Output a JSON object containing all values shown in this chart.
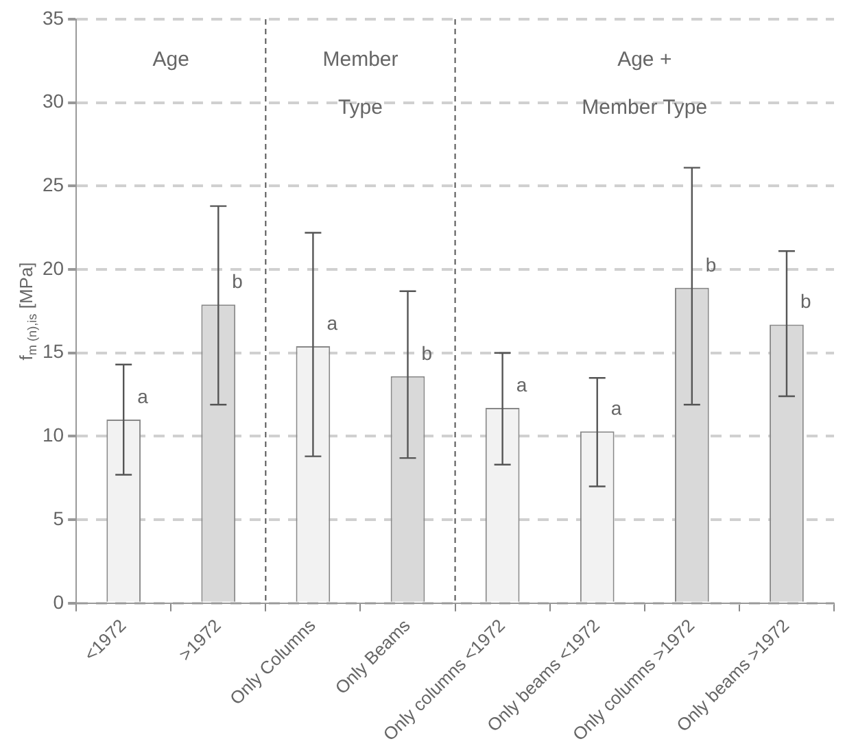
{
  "chart_data": {
    "type": "bar",
    "ylabel": "f$_{m (n),is}$ [MPa]",
    "categories": [
      "<1972",
      ">1972",
      "Only Columns",
      "Only Beams",
      "Only columns <1972",
      "Only beams <1972",
      "Only columns >1972",
      "Only beams >1972"
    ],
    "values": [
      11.0,
      17.9,
      15.4,
      13.6,
      11.7,
      10.3,
      18.9,
      16.7
    ],
    "colors": [
      "#f2f2f2",
      "#d9d9d9",
      "#f2f2f2",
      "#d9d9d9",
      "#f2f2f2",
      "#f2f2f2",
      "#d9d9d9",
      "#d9d9d9"
    ],
    "errors": [
      [
        7.7,
        14.3
      ],
      [
        11.9,
        23.8
      ],
      [
        8.8,
        22.2
      ],
      [
        8.7,
        18.7
      ],
      [
        8.3,
        15.0
      ],
      [
        7.0,
        13.5
      ],
      [
        11.9,
        26.1
      ],
      [
        12.4,
        21.1
      ]
    ],
    "ylim": [
      0,
      35
    ],
    "yticks": [
      0,
      5,
      10,
      15,
      20,
      25,
      30,
      35
    ],
    "grid": "y",
    "legend": false,
    "annotations": [
      "Age",
      "Member\nType",
      "Age +\nMember Type",
      {
        "text": "a",
        "x": "<1972",
        "y": 11.0
      },
      {
        "text": "b",
        "x": ">1972",
        "y": 17.9
      },
      {
        "text": "a",
        "x": "Only Columns",
        "y": 15.4
      },
      {
        "text": "b",
        "x": "Only Beams",
        "y": 13.6
      },
      {
        "text": "a",
        "x": "Only columns <1972",
        "y": 11.7
      },
      {
        "text": "a",
        "x": "Only beams <1972",
        "y": 10.3
      },
      {
        "text": "b",
        "x": "Only columns >1972",
        "y": 18.9
      },
      {
        "text": "b",
        "x": "Only beams >1972",
        "y": 16.7
      }
    ]
  }
}
